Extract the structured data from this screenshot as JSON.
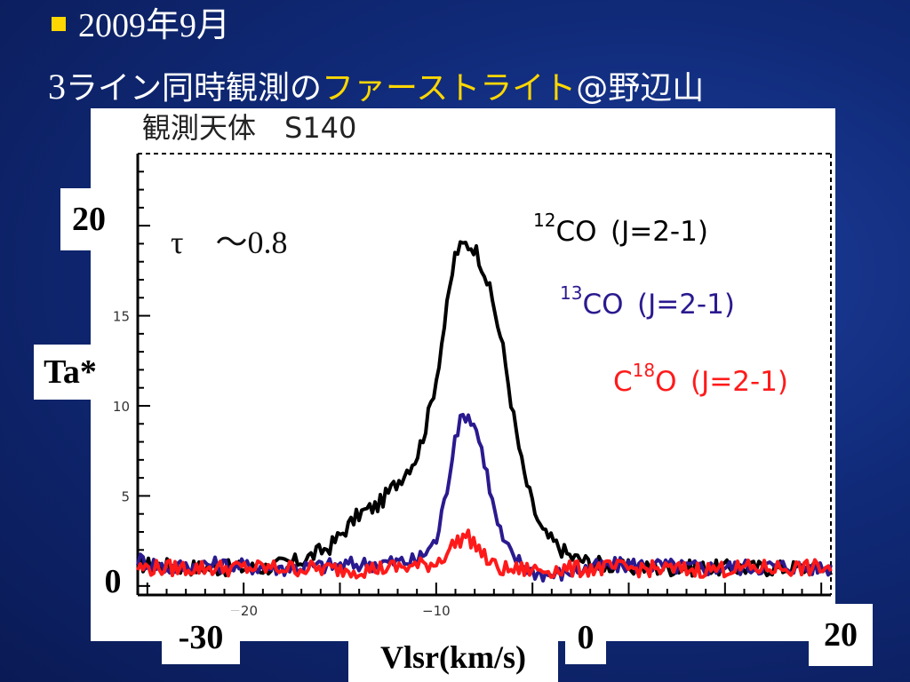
{
  "slide": {
    "line1": "2009年9月",
    "line2_prefix": "3",
    "line2_jp": "ライン同時観測の",
    "line2_highlight": "ファーストライト",
    "line2_suffix": "@野辺山"
  },
  "plot": {
    "heading": "観測天体　S140",
    "annotation": "τ　〜0.8",
    "ylabel": "Ta*",
    "xlabel": "Vlsr(km/s)",
    "big_labels": {
      "y_top": "20",
      "y_zero": "0",
      "x_left": "-30",
      "x_mid": "0",
      "x_right": "20"
    }
  },
  "chart_data": {
    "type": "line",
    "xlim": [
      -25.5,
      10.5
    ],
    "ylim": [
      -0.5,
      24
    ],
    "x_ticks": [
      -20,
      -10,
      10
    ],
    "y_ticks": [
      5,
      10,
      15
    ],
    "grid": false,
    "series": [
      {
        "name": "12CO (J=2-1)",
        "iso": "12",
        "mol": "CO",
        "trans": "(J=2-1)",
        "color": "#000000",
        "x": [
          -25.5,
          -22,
          -19,
          -17,
          -15.5,
          -14,
          -13,
          -12,
          -11,
          -10.5,
          -10,
          -9.5,
          -9,
          -8.5,
          -8,
          -7.5,
          -7,
          -6.5,
          -6,
          -5.5,
          -5,
          -4.5,
          -4,
          -3,
          -2,
          0,
          3,
          6,
          10.5
        ],
        "y": [
          1.2,
          1.0,
          1.0,
          1.4,
          2.2,
          4.0,
          4.5,
          5.8,
          7.2,
          9.0,
          11.5,
          15.0,
          18.5,
          19.0,
          18.8,
          17.5,
          15.5,
          13.0,
          9.5,
          6.5,
          4.5,
          3.0,
          2.5,
          1.6,
          1.3,
          1.0,
          1.0,
          1.0,
          1.0
        ]
      },
      {
        "name": "13CO (J=2-1)",
        "iso": "13",
        "mol": "CO",
        "trans": "(J=2-1)",
        "color": "#2a1a8f",
        "x": [
          -25.5,
          -24,
          -22,
          -18,
          -14,
          -11,
          -10,
          -9.5,
          -9,
          -8.5,
          -8,
          -7.5,
          -7,
          -6.5,
          -6,
          -5.5,
          -5,
          -4,
          -2,
          0,
          4,
          8,
          10.5
        ],
        "y": [
          1.5,
          1.0,
          1.2,
          1.0,
          1.2,
          1.4,
          2.5,
          5.0,
          8.5,
          9.6,
          9.0,
          7.0,
          4.2,
          2.4,
          1.6,
          1.2,
          0.8,
          0.6,
          1.0,
          1.2,
          1.0,
          1.1,
          1.0
        ]
      },
      {
        "name": "C18O (J=2-1)",
        "iso": "18",
        "mol": "C|O",
        "trans": "(J=2-1)",
        "color": "#ff1a1a",
        "x": [
          -25.5,
          -22,
          -18,
          -14,
          -11,
          -10,
          -9.5,
          -9,
          -8.5,
          -8,
          -7.5,
          -7,
          -6.5,
          -6,
          -4,
          -1,
          3,
          7,
          10.5
        ],
        "y": [
          1.0,
          1.0,
          1.0,
          0.9,
          1.1,
          1.3,
          1.8,
          2.4,
          2.8,
          2.4,
          1.6,
          1.1,
          0.9,
          0.9,
          0.9,
          1.0,
          0.9,
          1.0,
          1.0
        ]
      }
    ]
  }
}
